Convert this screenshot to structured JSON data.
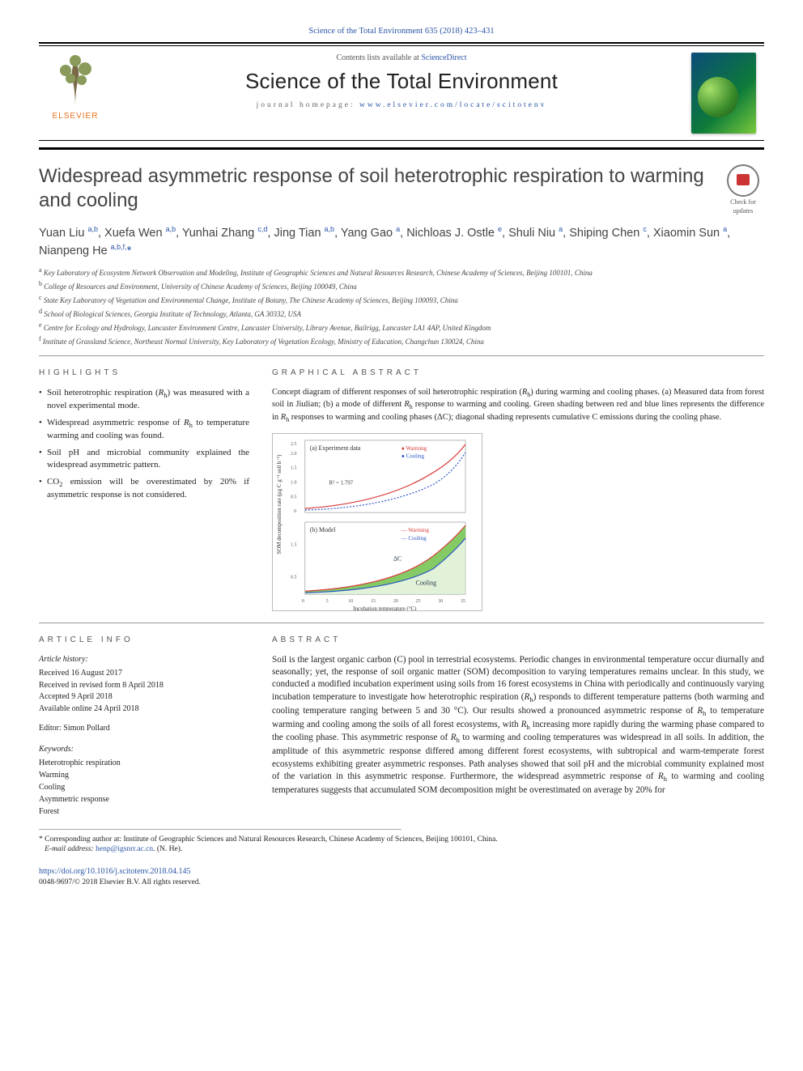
{
  "citation": "Science of the Total Environment 635 (2018) 423–431",
  "contents_line_pre": "Contents lists available at ",
  "contents_link": "ScienceDirect",
  "journal_name": "Science of the Total Environment",
  "homepage_label": "journal homepage: ",
  "homepage_url": "www.elsevier.com/locate/scitotenv",
  "publisher_brand": "ELSEVIER",
  "title": "Widespread asymmetric response of soil heterotrophic respiration to warming and cooling",
  "badge_label": "Check for updates",
  "authors_html": "Yuan Liu <sup>a,b</sup>, Xuefa Wen <sup>a,b</sup>, Yunhai Zhang <sup>c,d</sup>, Jing Tian <sup>a,b</sup>, Yang Gao <sup>a</sup>, Nichloas J. Ostle <sup>e</sup>, Shuli Niu <sup>a</sup>, Shiping Chen <sup>c</sup>, Xiaomin Sun <sup>a</sup>, Nianpeng He <sup>a,b,f,</sup><span class='star'>*</span>",
  "affiliations": [
    {
      "key": "a",
      "text": "Key Laboratory of Ecosystem Network Observation and Modeling, Institute of Geographic Sciences and Natural Resources Research, Chinese Academy of Sciences, Beijing 100101, China"
    },
    {
      "key": "b",
      "text": "College of Resources and Environment, University of Chinese Academy of Sciences, Beijing 100049, China"
    },
    {
      "key": "c",
      "text": "State Key Laboratory of Vegetation and Environmental Change, Institute of Botany, The Chinese Academy of Sciences, Beijing 100093, China"
    },
    {
      "key": "d",
      "text": "School of Biological Sciences, Georgia Institute of Technology, Atlanta, GA 30332, USA"
    },
    {
      "key": "e",
      "text": "Centre for Ecology and Hydrology, Lancaster Environment Centre, Lancaster University, Library Avenue, Bailrigg, Lancaster LA1 4AP, United Kingdom"
    },
    {
      "key": "f",
      "text": "Institute of Grassland Science, Northeast Normal University, Key Laboratory of Vegetation Ecology, Ministry of Education, Changchun 130024, China"
    }
  ],
  "highlights_heading": "HIGHLIGHTS",
  "highlights": [
    "Soil heterotrophic respiration (Rₕ) was measured with a novel experimental mode.",
    "Widespread asymmetric response of Rₕ to temperature warming and cooling was found.",
    "Soil pH and microbial community explained the widespread asymmetric pattern.",
    "CO₂ emission will be overestimated by 20% if asymmetric response is not considered."
  ],
  "ga_heading": "GRAPHICAL ABSTRACT",
  "ga_caption": "Concept diagram of different responses of soil heterotrophic respiration (Rₕ) during warming and cooling phases. (a) Measured data from forest soil in Jiulian; (b) a mode of different Rₕ response to warming and cooling. Green shading between red and blue lines represents the difference in Rₕ responses to warming and cooling phases (ΔC); diagonal shading represents cumulative C emissions during the cooling phase.",
  "ga_chart": {
    "panel_a": {
      "label": "(a) Experiment data",
      "series": [
        {
          "name": "Warming",
          "color": "#d93b3b",
          "marker": "circle",
          "type": "exponential"
        },
        {
          "name": "Cooling",
          "color": "#2a55c8",
          "marker": "circle",
          "type": "exponential"
        }
      ],
      "r2_text": "R² = 1.797",
      "xlim": [
        0,
        30
      ],
      "ylim": [
        0,
        2.5
      ],
      "ytick": [
        0,
        0.5,
        1.0,
        1.5,
        2.0,
        2.5
      ],
      "font_size": 8,
      "bg": "#ffffff",
      "grid": "#dddddd"
    },
    "panel_b": {
      "label": "(b) Model",
      "fill_color": "#6fc24a",
      "hatch_fill": "#cfe9c0",
      "lines": [
        {
          "name": "Warming",
          "color": "#d93b3b"
        },
        {
          "name": "Cooling",
          "color": "#2a55c8"
        }
      ],
      "deltaC_label": "ΔC",
      "cooling_label": "Cooling",
      "xlim": [
        0,
        35
      ],
      "ylim": [
        0,
        2.2
      ],
      "ytick": [
        0.5,
        1.5
      ],
      "xlabel": "Incubation temperature (°C)",
      "ylabel": "SOM decomposition rate (μg C g⁻¹ soil h⁻¹)",
      "font_size": 8
    }
  },
  "article_info_heading": "ARTICLE INFO",
  "history_heading": "Article history:",
  "history": [
    "Received 16 August 2017",
    "Received in revised form 8 April 2018",
    "Accepted 9 April 2018",
    "Available online 24 April 2018"
  ],
  "editor_line": "Editor: Simon Pollard",
  "keywords_heading": "Keywords:",
  "keywords": [
    "Heterotrophic respiration",
    "Warming",
    "Cooling",
    "Asymmetric response",
    "Forest"
  ],
  "abstract_heading": "ABSTRACT",
  "abstract": "Soil is the largest organic carbon (C) pool in terrestrial ecosystems. Periodic changes in environmental temperature occur diurnally and seasonally; yet, the response of soil organic matter (SOM) decomposition to varying temperatures remains unclear. In this study, we conducted a modified incubation experiment using soils from 16 forest ecosystems in China with periodically and continuously varying incubation temperature to investigate how heterotrophic respiration (Rₕ) responds to different temperature patterns (both warming and cooling temperature ranging between 5 and 30 °C). Our results showed a pronounced asymmetric response of Rₕ to temperature warming and cooling among the soils of all forest ecosystems, with Rₕ increasing more rapidly during the warming phase compared to the cooling phase. This asymmetric response of Rₕ to warming and cooling temperatures was widespread in all soils. In addition, the amplitude of this asymmetric response differed among different forest ecosystems, with subtropical and warm-temperate forest ecosystems exhibiting greater asymmetric responses. Path analyses showed that soil pH and the microbial community explained most of the variation in this asymmetric response. Furthermore, the widespread asymmetric response of Rₕ to warming and cooling temperatures suggests that accumulated SOM decomposition might be overestimated on average by 20% for",
  "corr_label": "* Corresponding author at: Institute of Geographic Sciences and Natural Resources Research, Chinese Academy of Sciences, Beijing 100101, China.",
  "email_label": "E-mail address: ",
  "email": "henp@igsnrr.ac.cn",
  "email_tail": ". (N. He).",
  "doi_url": "https://doi.org/10.1016/j.scitotenv.2018.04.145",
  "copyright": "0048-9697/© 2018 Elsevier B.V. All rights reserved.",
  "colors": {
    "link": "#2a55a5",
    "accent": "#e9711c",
    "text": "#222222"
  }
}
